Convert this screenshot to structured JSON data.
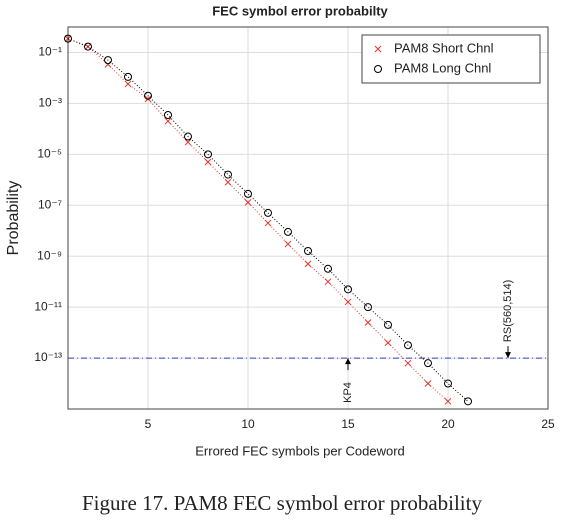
{
  "chart_data": {
    "type": "line",
    "title": "FEC symbol error probabilty",
    "xlabel": "Errored FEC symbols per Codeword",
    "ylabel": "Probability",
    "x": [
      1,
      2,
      3,
      4,
      5,
      6,
      7,
      8,
      9,
      10,
      11,
      12,
      13,
      14,
      15,
      16,
      17,
      18,
      19,
      20,
      21
    ],
    "series": [
      {
        "name": "PAM8 Short Chnl",
        "color": "#e8332a",
        "marker": "x",
        "values": [
          0.35,
          0.17,
          0.034,
          0.0058,
          0.0015,
          0.0002,
          3e-05,
          5e-06,
          8e-07,
          1.3e-07,
          2e-08,
          3e-09,
          5e-10,
          1e-10,
          1.6e-11,
          2.5e-12,
          4e-13,
          6.3e-14,
          1e-14,
          2e-15,
          null
        ]
      },
      {
        "name": "PAM8 Long Chnl",
        "color": "#000000",
        "marker": "o",
        "values": [
          0.35,
          0.17,
          0.05,
          0.011,
          0.002,
          0.00035,
          5e-05,
          1e-05,
          1.6e-06,
          2.8e-07,
          5e-08,
          9e-09,
          1.6e-09,
          3.2e-10,
          5e-11,
          1e-11,
          2e-12,
          3.2e-13,
          6.3e-14,
          1e-14,
          2e-15
        ]
      }
    ],
    "xlim": [
      1,
      25
    ],
    "xticks": [
      5,
      10,
      15,
      20,
      25
    ],
    "ylim": [
      1e-15,
      1
    ],
    "log_y": true,
    "yticks": [
      {
        "value": 0.1,
        "label": "10⁻¹"
      },
      {
        "value": 0.001,
        "label": "10⁻³"
      },
      {
        "value": 1e-05,
        "label": "10⁻⁵"
      },
      {
        "value": 1e-07,
        "label": "10⁻⁷"
      },
      {
        "value": 1e-09,
        "label": "10⁻⁹"
      },
      {
        "value": 1e-11,
        "label": "10⁻¹¹"
      },
      {
        "value": 1e-13,
        "label": "10⁻¹³"
      }
    ],
    "grid": true,
    "legend": "upper right",
    "hline": {
      "value": 1e-13,
      "color": "#3040c0"
    },
    "annotations": [
      {
        "text": "KP4",
        "x": 15,
        "y": 1e-13
      },
      {
        "text": "RS(560,514)",
        "x": 23,
        "y": 1e-13
      }
    ]
  },
  "caption": "Figure 17. PAM8 FEC symbol error probability"
}
